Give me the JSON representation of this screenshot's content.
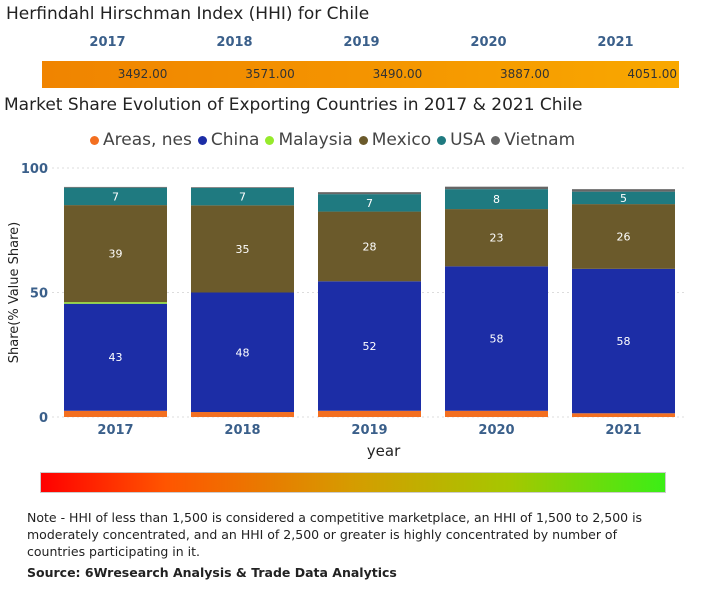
{
  "hhi": {
    "title": "Herfindahl Hirschman Index (HHI) for Chile",
    "years": [
      "2017",
      "2018",
      "2019",
      "2020",
      "2021"
    ],
    "values": [
      "3492.00",
      "3571.00",
      "3490.00",
      "3887.00",
      "4051.00"
    ],
    "bar_color": "#f49400"
  },
  "chart_data": {
    "type": "bar",
    "stacked": true,
    "title": "Market Share Evolution of Exporting Countries in 2017 & 2021 Chile",
    "xlabel": "year",
    "ylabel": "Share(% Value Share)",
    "ylim": [
      0,
      100
    ],
    "yticks": [
      "0",
      "50",
      "100"
    ],
    "categories": [
      "2017",
      "2018",
      "2019",
      "2020",
      "2021"
    ],
    "legend_position": "top",
    "series": [
      {
        "name": "Areas, nes",
        "color": "#f36f20",
        "values": [
          2.5,
          2,
          2.5,
          2.5,
          1.5
        ],
        "labels": [
          "",
          "",
          "",
          "",
          ""
        ]
      },
      {
        "name": "China",
        "color": "#1c2da6",
        "values": [
          43,
          48,
          52,
          58,
          58
        ],
        "labels": [
          "43",
          "48",
          "52",
          "58",
          "58"
        ]
      },
      {
        "name": "Malaysia",
        "color": "#96ea2c",
        "values": [
          0.6,
          0,
          0,
          0,
          0
        ],
        "labels": [
          "",
          "",
          "",
          "",
          ""
        ]
      },
      {
        "name": "Mexico",
        "color": "#6b5a2b",
        "values": [
          39,
          35,
          28,
          23,
          26
        ],
        "labels": [
          "39",
          "35",
          "28",
          "23",
          "26"
        ]
      },
      {
        "name": "USA",
        "color": "#1f7a80",
        "values": [
          7,
          7,
          7,
          8,
          5
        ],
        "labels": [
          "7",
          "7",
          "7",
          "8",
          "5"
        ]
      },
      {
        "name": "Vietnam",
        "color": "#666666",
        "values": [
          0.3,
          0.3,
          0.8,
          1,
          1
        ],
        "labels": [
          "",
          "",
          "",
          "",
          ""
        ]
      }
    ]
  },
  "footer": {
    "note": "Note - HHI of less than 1,500 is considered a competitive marketplace, an HHI of 1,500 to 2,500 is moderately concentrated, and an HHI of 2,500 or greater is highly concentrated by number of countries participating in it.",
    "source": "Source: 6Wresearch Analysis & Trade Data Analytics"
  }
}
